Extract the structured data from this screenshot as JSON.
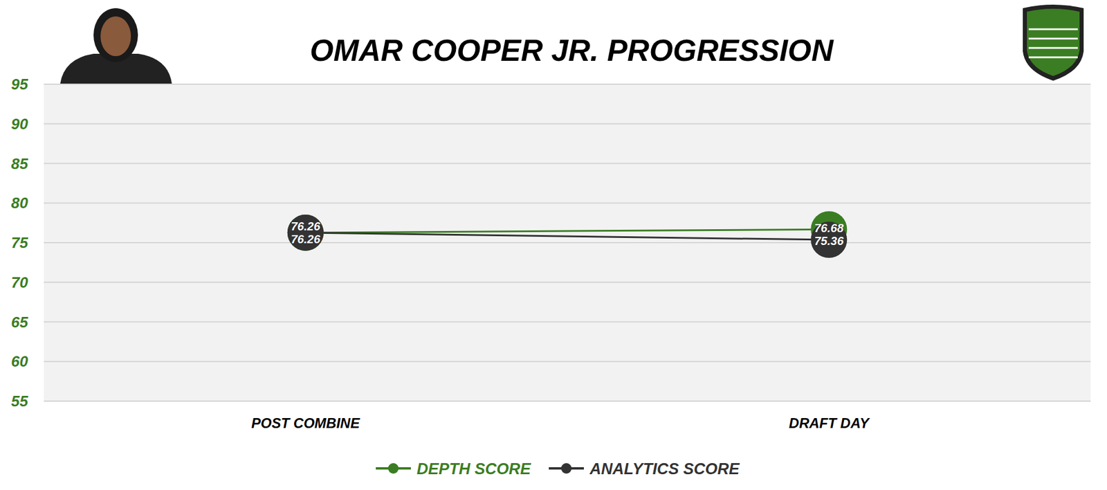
{
  "chart_data": {
    "type": "line",
    "title": "OMAR COOPER JR. PROGRESSION",
    "categories": [
      "POST COMBINE",
      "DRAFT DAY"
    ],
    "series": [
      {
        "name": "DEPTH SCORE",
        "color": "#3b7d23",
        "values": [
          76.26,
          76.68
        ]
      },
      {
        "name": "ANALYTICS SCORE",
        "color": "#333333",
        "values": [
          76.26,
          75.36
        ]
      }
    ],
    "ylim": [
      55,
      95
    ],
    "yticks": [
      55,
      60,
      65,
      70,
      75,
      80,
      85,
      90,
      95
    ],
    "grid": true,
    "legend": "bottom",
    "data_labels": true,
    "marker": "circle"
  }
}
